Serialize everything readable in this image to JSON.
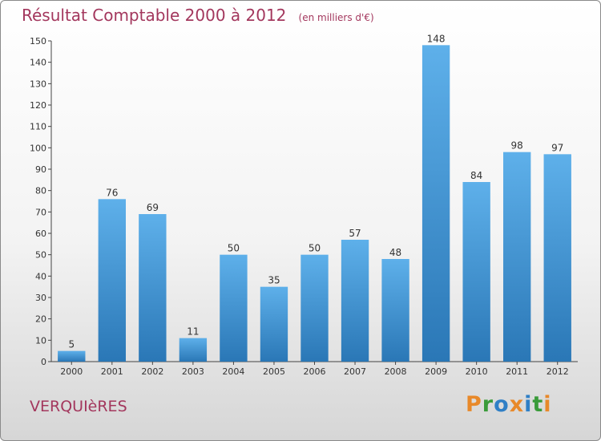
{
  "header": {
    "title": "Résultat Comptable 2000 à 2012",
    "unit": "(en milliers d'€)"
  },
  "footer": {
    "commune": "VERQUIèRES",
    "logo_letters": [
      {
        "ch": "P",
        "color": "#e8892a"
      },
      {
        "ch": "r",
        "color": "#3a9b3a"
      },
      {
        "ch": "o",
        "color": "#2f7fc6"
      },
      {
        "ch": "x",
        "color": "#e8892a"
      },
      {
        "ch": "i",
        "color": "#2f7fc6"
      },
      {
        "ch": "t",
        "color": "#3a9b3a"
      },
      {
        "ch": "i",
        "color": "#e8892a"
      }
    ]
  },
  "chart_data": {
    "type": "bar",
    "title": "Résultat Comptable 2000 à 2012",
    "subtitle": "(en milliers d'€)",
    "categories": [
      "2000",
      "2001",
      "2002",
      "2003",
      "2004",
      "2005",
      "2006",
      "2007",
      "2008",
      "2009",
      "2010",
      "2011",
      "2012"
    ],
    "values": [
      5,
      76,
      69,
      11,
      50,
      35,
      50,
      57,
      48,
      148,
      84,
      98,
      97
    ],
    "ylim": [
      0,
      150
    ],
    "yticks": [
      0,
      10,
      20,
      30,
      40,
      50,
      60,
      70,
      80,
      90,
      100,
      110,
      120,
      130,
      140,
      150
    ],
    "grid": false,
    "colors": {
      "bar_light": "#5eb0ea",
      "bar_dark": "#2a77b6",
      "text": "#333333",
      "accent": "#a3375d"
    }
  }
}
